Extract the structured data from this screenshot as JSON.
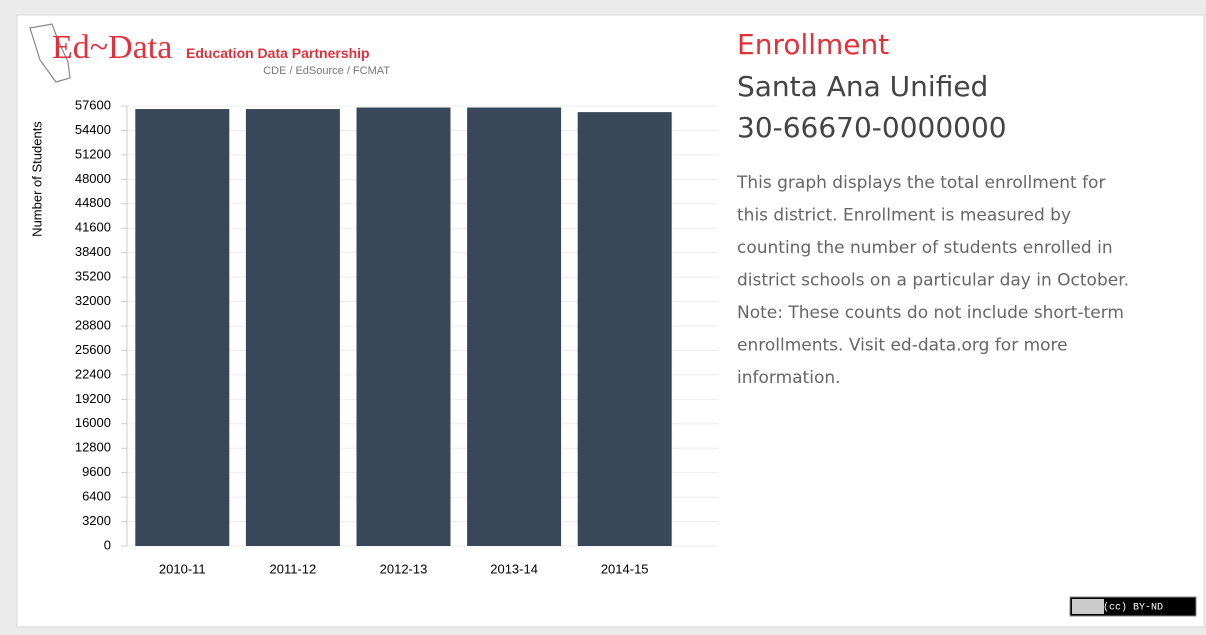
{
  "logo": {
    "brand": "Ed~Data",
    "tagline": "Education Data Partnership",
    "partners": "CDE / EdSource / FCMAT"
  },
  "panel": {
    "title": "Enrollment",
    "district": "Santa Ana Unified",
    "code": "30-66670-0000000",
    "description": [
      "This graph displays the total enrollment for",
      "this district. Enrollment is measured by",
      "counting the number of students enrolled in",
      "district schools on a particular day in October.",
      "Note: These counts do not include short-term",
      "enrollments. Visit ed-data.org for more",
      "information."
    ],
    "license": "(cc) BY-ND"
  },
  "chart_data": {
    "type": "bar",
    "ylabel": "Number of Students",
    "categories": [
      "2010-11",
      "2011-12",
      "2012-13",
      "2013-14",
      "2014-15"
    ],
    "values": [
      57200,
      57200,
      57400,
      57400,
      56800
    ],
    "color": "#39475a",
    "ylim": [
      0,
      57600
    ],
    "yticks": [
      0,
      3200,
      6400,
      9600,
      12800,
      16000,
      19200,
      22400,
      25600,
      28800,
      32000,
      35200,
      38400,
      41600,
      44800,
      48000,
      51200,
      54400,
      57600
    ],
    "grid": true
  }
}
